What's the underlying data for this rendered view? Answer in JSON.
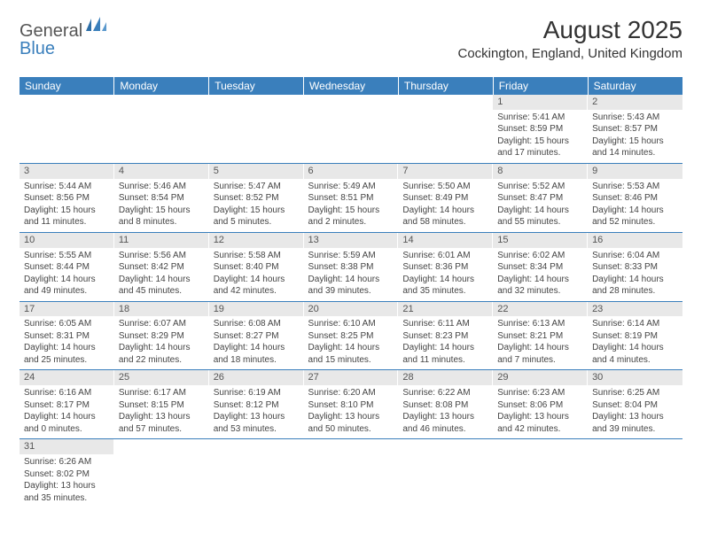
{
  "brand": {
    "part1": "General",
    "part2": "Blue"
  },
  "title": "August 2025",
  "location": "Cockington, England, United Kingdom",
  "colors": {
    "accent": "#3a7fbc",
    "daynum_bg": "#e8e8e8",
    "text": "#333333",
    "body_text": "#444444"
  },
  "weekdays": [
    "Sunday",
    "Monday",
    "Tuesday",
    "Wednesday",
    "Thursday",
    "Friday",
    "Saturday"
  ],
  "weeks": [
    [
      null,
      null,
      null,
      null,
      null,
      {
        "n": "1",
        "sr": "Sunrise: 5:41 AM",
        "ss": "Sunset: 8:59 PM",
        "d1": "Daylight: 15 hours",
        "d2": "and 17 minutes."
      },
      {
        "n": "2",
        "sr": "Sunrise: 5:43 AM",
        "ss": "Sunset: 8:57 PM",
        "d1": "Daylight: 15 hours",
        "d2": "and 14 minutes."
      }
    ],
    [
      {
        "n": "3",
        "sr": "Sunrise: 5:44 AM",
        "ss": "Sunset: 8:56 PM",
        "d1": "Daylight: 15 hours",
        "d2": "and 11 minutes."
      },
      {
        "n": "4",
        "sr": "Sunrise: 5:46 AM",
        "ss": "Sunset: 8:54 PM",
        "d1": "Daylight: 15 hours",
        "d2": "and 8 minutes."
      },
      {
        "n": "5",
        "sr": "Sunrise: 5:47 AM",
        "ss": "Sunset: 8:52 PM",
        "d1": "Daylight: 15 hours",
        "d2": "and 5 minutes."
      },
      {
        "n": "6",
        "sr": "Sunrise: 5:49 AM",
        "ss": "Sunset: 8:51 PM",
        "d1": "Daylight: 15 hours",
        "d2": "and 2 minutes."
      },
      {
        "n": "7",
        "sr": "Sunrise: 5:50 AM",
        "ss": "Sunset: 8:49 PM",
        "d1": "Daylight: 14 hours",
        "d2": "and 58 minutes."
      },
      {
        "n": "8",
        "sr": "Sunrise: 5:52 AM",
        "ss": "Sunset: 8:47 PM",
        "d1": "Daylight: 14 hours",
        "d2": "and 55 minutes."
      },
      {
        "n": "9",
        "sr": "Sunrise: 5:53 AM",
        "ss": "Sunset: 8:46 PM",
        "d1": "Daylight: 14 hours",
        "d2": "and 52 minutes."
      }
    ],
    [
      {
        "n": "10",
        "sr": "Sunrise: 5:55 AM",
        "ss": "Sunset: 8:44 PM",
        "d1": "Daylight: 14 hours",
        "d2": "and 49 minutes."
      },
      {
        "n": "11",
        "sr": "Sunrise: 5:56 AM",
        "ss": "Sunset: 8:42 PM",
        "d1": "Daylight: 14 hours",
        "d2": "and 45 minutes."
      },
      {
        "n": "12",
        "sr": "Sunrise: 5:58 AM",
        "ss": "Sunset: 8:40 PM",
        "d1": "Daylight: 14 hours",
        "d2": "and 42 minutes."
      },
      {
        "n": "13",
        "sr": "Sunrise: 5:59 AM",
        "ss": "Sunset: 8:38 PM",
        "d1": "Daylight: 14 hours",
        "d2": "and 39 minutes."
      },
      {
        "n": "14",
        "sr": "Sunrise: 6:01 AM",
        "ss": "Sunset: 8:36 PM",
        "d1": "Daylight: 14 hours",
        "d2": "and 35 minutes."
      },
      {
        "n": "15",
        "sr": "Sunrise: 6:02 AM",
        "ss": "Sunset: 8:34 PM",
        "d1": "Daylight: 14 hours",
        "d2": "and 32 minutes."
      },
      {
        "n": "16",
        "sr": "Sunrise: 6:04 AM",
        "ss": "Sunset: 8:33 PM",
        "d1": "Daylight: 14 hours",
        "d2": "and 28 minutes."
      }
    ],
    [
      {
        "n": "17",
        "sr": "Sunrise: 6:05 AM",
        "ss": "Sunset: 8:31 PM",
        "d1": "Daylight: 14 hours",
        "d2": "and 25 minutes."
      },
      {
        "n": "18",
        "sr": "Sunrise: 6:07 AM",
        "ss": "Sunset: 8:29 PM",
        "d1": "Daylight: 14 hours",
        "d2": "and 22 minutes."
      },
      {
        "n": "19",
        "sr": "Sunrise: 6:08 AM",
        "ss": "Sunset: 8:27 PM",
        "d1": "Daylight: 14 hours",
        "d2": "and 18 minutes."
      },
      {
        "n": "20",
        "sr": "Sunrise: 6:10 AM",
        "ss": "Sunset: 8:25 PM",
        "d1": "Daylight: 14 hours",
        "d2": "and 15 minutes."
      },
      {
        "n": "21",
        "sr": "Sunrise: 6:11 AM",
        "ss": "Sunset: 8:23 PM",
        "d1": "Daylight: 14 hours",
        "d2": "and 11 minutes."
      },
      {
        "n": "22",
        "sr": "Sunrise: 6:13 AM",
        "ss": "Sunset: 8:21 PM",
        "d1": "Daylight: 14 hours",
        "d2": "and 7 minutes."
      },
      {
        "n": "23",
        "sr": "Sunrise: 6:14 AM",
        "ss": "Sunset: 8:19 PM",
        "d1": "Daylight: 14 hours",
        "d2": "and 4 minutes."
      }
    ],
    [
      {
        "n": "24",
        "sr": "Sunrise: 6:16 AM",
        "ss": "Sunset: 8:17 PM",
        "d1": "Daylight: 14 hours",
        "d2": "and 0 minutes."
      },
      {
        "n": "25",
        "sr": "Sunrise: 6:17 AM",
        "ss": "Sunset: 8:15 PM",
        "d1": "Daylight: 13 hours",
        "d2": "and 57 minutes."
      },
      {
        "n": "26",
        "sr": "Sunrise: 6:19 AM",
        "ss": "Sunset: 8:12 PM",
        "d1": "Daylight: 13 hours",
        "d2": "and 53 minutes."
      },
      {
        "n": "27",
        "sr": "Sunrise: 6:20 AM",
        "ss": "Sunset: 8:10 PM",
        "d1": "Daylight: 13 hours",
        "d2": "and 50 minutes."
      },
      {
        "n": "28",
        "sr": "Sunrise: 6:22 AM",
        "ss": "Sunset: 8:08 PM",
        "d1": "Daylight: 13 hours",
        "d2": "and 46 minutes."
      },
      {
        "n": "29",
        "sr": "Sunrise: 6:23 AM",
        "ss": "Sunset: 8:06 PM",
        "d1": "Daylight: 13 hours",
        "d2": "and 42 minutes."
      },
      {
        "n": "30",
        "sr": "Sunrise: 6:25 AM",
        "ss": "Sunset: 8:04 PM",
        "d1": "Daylight: 13 hours",
        "d2": "and 39 minutes."
      }
    ],
    [
      {
        "n": "31",
        "sr": "Sunrise: 6:26 AM",
        "ss": "Sunset: 8:02 PM",
        "d1": "Daylight: 13 hours",
        "d2": "and 35 minutes."
      },
      null,
      null,
      null,
      null,
      null,
      null
    ]
  ]
}
